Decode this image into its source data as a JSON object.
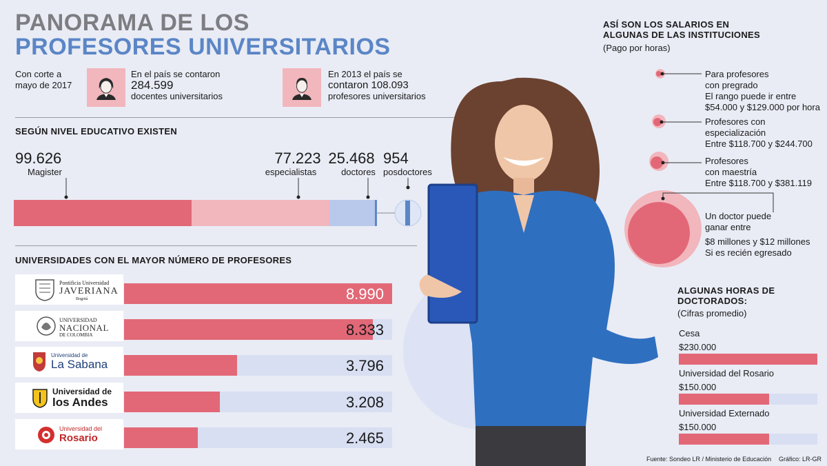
{
  "title": {
    "line1": "PANORAMA DE LOS",
    "line2": "PROFESORES UNIVERSITARIOS"
  },
  "intro": {
    "cutoff": [
      "Con corte a",
      "mayo de 2017"
    ],
    "country": {
      "line1": "En el país se contaron",
      "number": "284.599",
      "line3": "docentes universitarios"
    },
    "y2013": {
      "line1": "En 2013 el país se",
      "line2": "contaron 108.093",
      "line3": "profesores universitarios"
    }
  },
  "icons": {
    "female": "female-user-icon",
    "male": "male-user-icon"
  },
  "colors": {
    "pink": "#e26877",
    "light_pink": "#f2b6bd",
    "light_blue": "#b9c9ec",
    "blue": "#5b86c6",
    "bg": "#e9ecf5"
  },
  "chart_data": [
    {
      "type": "bar",
      "title": "SEGÚN NIVEL EDUCATIVO EXISTEN",
      "categories": [
        "Magister",
        "especialistas",
        "doctores",
        "posdoctores"
      ],
      "values": [
        99626,
        77223,
        25468,
        954
      ],
      "value_labels": [
        "99.626",
        "77.223",
        "25.468",
        "954"
      ]
    },
    {
      "type": "bar",
      "title": "UNIVERSIDADES CON EL MAYOR NÚMERO DE PROFESORES",
      "categories": [
        "Pontificia Universidad Javeriana",
        "Universidad Nacional de Colombia",
        "Universidad de La Sabana",
        "Universidad de los Andes",
        "Universidad del Rosario"
      ],
      "values": [
        8990,
        8333,
        3796,
        3208,
        2465
      ],
      "value_labels": [
        "8.990",
        "8.333",
        "3.796",
        "3.208",
        "2.465"
      ],
      "ylim": [
        0,
        8990
      ]
    },
    {
      "type": "bar",
      "title": "ALGUNAS HORAS DE DOCTORADOS:",
      "subtitle": "(Cifras promedio)",
      "categories": [
        "Cesa",
        "Universidad del Rosario",
        "Universidad Externado"
      ],
      "values": [
        230000,
        150000,
        150000
      ],
      "value_labels": [
        "$230.000",
        "$150.000",
        "$150.000"
      ],
      "ylim": [
        0,
        230000
      ]
    }
  ],
  "logos": {
    "javeriana": {
      "line1": "Pontificia Universidad",
      "line2": "JAVERIANA",
      "line3": "Bogotá"
    },
    "nacional": {
      "line1": "UNIVERSIDAD",
      "line2": "NACIONAL",
      "line3": "DE COLOMBIA"
    },
    "sabana": {
      "line1": "Universidad de",
      "line2": "La Sabana"
    },
    "andes": {
      "line1": "Universidad de",
      "line2": "los Andes"
    },
    "rosario": {
      "line1": "Universidad del",
      "line2": "Rosario"
    }
  },
  "salaries": {
    "title1": "ASÍ SON LOS SALARIOS EN",
    "title2": "ALGUNAS DE LAS INSTITUCIONES",
    "subtitle": "(Pago por horas)",
    "items": [
      {
        "lines": [
          "Para profesores",
          "con pregrado",
          "El rango puede ir entre",
          "$54.000 y $129.000 por hora"
        ]
      },
      {
        "lines": [
          "Profesores con",
          "especialización",
          "Entre $118.700 y $244.700"
        ]
      },
      {
        "lines": [
          "Profesores",
          "con maestría",
          "Entre $118.700 y $381.119"
        ]
      },
      {
        "lines": [
          "Un doctor puede",
          "ganar entre",
          "$8 millones y $12 millones",
          "Si es recién egresado"
        ]
      }
    ]
  },
  "footer": {
    "source": "Fuente: Sondeo LR / Ministerio de Educación",
    "credit": "Gráfico: LR-GR"
  }
}
